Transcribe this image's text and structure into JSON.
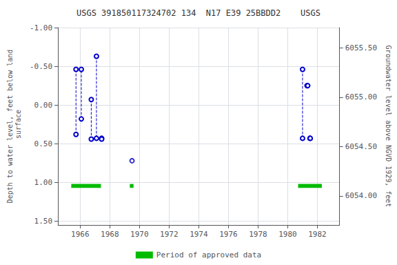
{
  "chart_data": {
    "type": "line",
    "title": "USGS 391850117324702 134  N17 E39 25BBDD2    USGS",
    "ylabel": "Depth to water level, feet below land\n surface",
    "y2label": "Groundwater level above NGVD 1929, feet",
    "xlim": [
      1964.5,
      1983.5
    ],
    "xticks": [
      1966,
      1968,
      1970,
      1972,
      1974,
      1976,
      1978,
      1980,
      1982
    ],
    "ylim": [
      1.55,
      -1.0
    ],
    "yticks": [
      {
        "value": -1.0,
        "label": "-1.00"
      },
      {
        "value": -0.5,
        "label": "-0.50"
      },
      {
        "value": 0.0,
        "label": "0.00"
      },
      {
        "value": 0.5,
        "label": "0.50"
      },
      {
        "value": 1.0,
        "label": "1.00"
      },
      {
        "value": 1.5,
        "label": "1.50"
      }
    ],
    "y2lim": [
      6053.705,
      6055.705
    ],
    "y2ticks": [
      {
        "value": 6055.5,
        "label": "6055.50"
      },
      {
        "value": 6055.0,
        "label": "6055.00"
      },
      {
        "value": 6054.5,
        "label": "6054.50"
      },
      {
        "value": 6054.0,
        "label": "6054.00"
      }
    ],
    "grid": true,
    "legend": "bottom",
    "series": [
      {
        "type": "line",
        "color": "#0000cc",
        "marker": "circle",
        "line_style": "dashed",
        "x": [
          1965.72,
          1965.72
        ],
        "values": [
          0.38,
          -0.46
        ]
      },
      {
        "type": "line",
        "color": "#0000cc",
        "marker": "circle",
        "line_style": "dashed",
        "x": [
          1966.08,
          1966.08
        ],
        "values": [
          0.18,
          -0.46
        ]
      },
      {
        "type": "line",
        "color": "#0000cc",
        "marker": "circle",
        "line_style": "dashed",
        "x": [
          1966.75,
          1966.75
        ],
        "values": [
          -0.07,
          0.44
        ]
      },
      {
        "type": "line",
        "color": "#0000cc",
        "marker": "circle",
        "line_style": "dashed",
        "x": [
          1967.1,
          1967.1
        ],
        "values": [
          -0.63,
          0.43
        ]
      },
      {
        "type": "line",
        "color": "#0000cc",
        "marker": "circle",
        "line_style": "dashed",
        "x": [
          1967.45,
          1967.45
        ],
        "values": [
          0.43,
          0.44
        ]
      },
      {
        "type": "scatter",
        "color": "#0000cc",
        "marker": "circle",
        "x": [
          1969.5
        ],
        "values": [
          0.72
        ]
      },
      {
        "type": "line",
        "color": "#0000cc",
        "marker": "circle",
        "line_style": "dashed",
        "x": [
          1981.0,
          1981.0
        ],
        "values": [
          -0.46,
          0.43
        ]
      },
      {
        "type": "line",
        "color": "#0000cc",
        "marker": "circle",
        "line_style": "dashed",
        "x": [
          1981.3,
          1981.35
        ],
        "values": [
          -0.25,
          -0.25
        ]
      },
      {
        "type": "line",
        "color": "#0000cc",
        "marker": "circle",
        "line_style": "dashed",
        "x": [
          1981.5,
          1981.52
        ],
        "values": [
          0.43,
          0.43
        ]
      },
      {
        "type": "bar",
        "name": "Period of approved data",
        "color": "#00bb00",
        "x": [
          1965.4,
          1969.35,
          1980.7
        ],
        "width": [
          2.0,
          0.25,
          1.6
        ],
        "y": [
          1.02,
          1.02,
          1.02
        ],
        "height": [
          0.05,
          0.05,
          0.05
        ]
      }
    ]
  }
}
